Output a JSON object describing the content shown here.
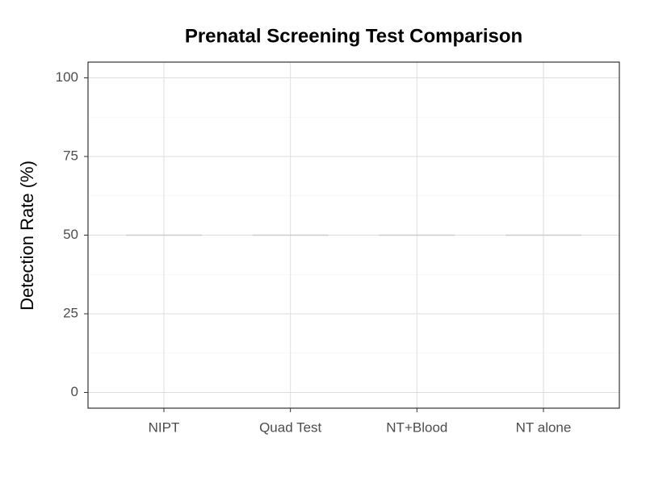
{
  "chart_data": {
    "type": "segment",
    "title": "Prenatal Screening Test Comparison",
    "y_label": "Detection Rate (%)",
    "categories": [
      "NIPT",
      "Quad Test",
      "NT+Blood",
      "NT alone"
    ],
    "values": [
      50,
      50,
      50,
      50
    ],
    "color": "#cccccc",
    "ylim": [
      -5,
      105
    ],
    "yticks": [
      0,
      25,
      50,
      75,
      100
    ],
    "grid": true
  }
}
